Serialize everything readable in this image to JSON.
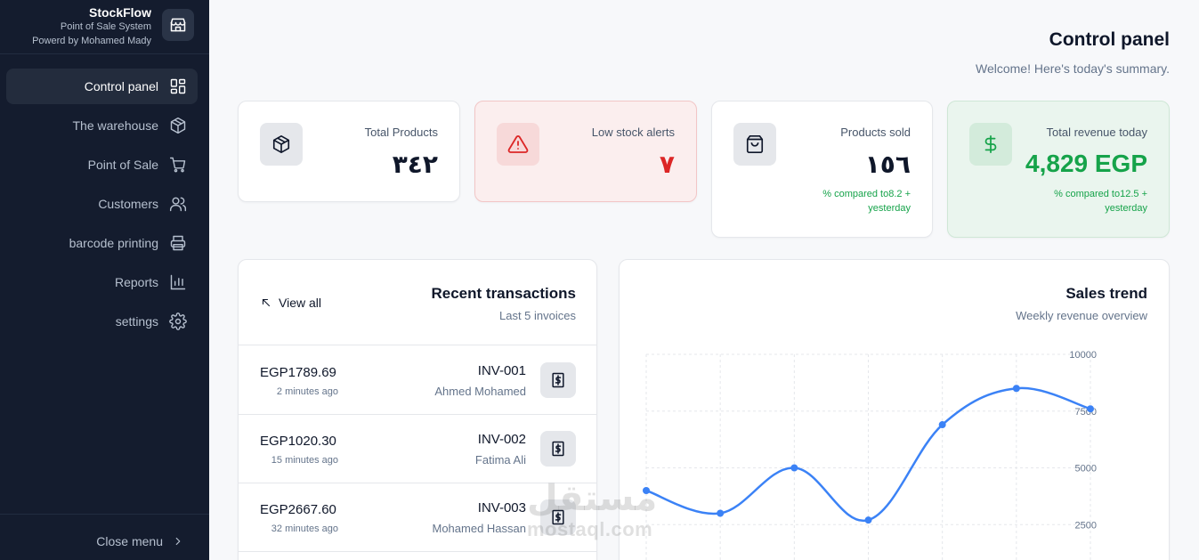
{
  "app": {
    "name": "StockFlow",
    "subtitle": "Point of Sale System",
    "powered_by": "Powerd by Mohamed Mady",
    "icon": "store-icon"
  },
  "sidebar": {
    "items": [
      {
        "label": "Control panel",
        "icon": "dashboard-icon",
        "active": true
      },
      {
        "label": "The warehouse",
        "icon": "box-icon"
      },
      {
        "label": "Point of Sale",
        "icon": "cart-icon"
      },
      {
        "label": "Customers",
        "icon": "users-icon"
      },
      {
        "label": "barcode printing",
        "icon": "printer-icon"
      },
      {
        "label": "Reports",
        "icon": "bar-chart-icon"
      },
      {
        "label": "settings",
        "icon": "gear-icon"
      }
    ],
    "close_label": "Close menu"
  },
  "header": {
    "title": "Control panel",
    "subtitle": "Welcome! Here's today's summary."
  },
  "stats": [
    {
      "label": "Total Products",
      "value": "٣٤٢",
      "icon": "box-icon"
    },
    {
      "label": "Low stock alerts",
      "value": "٧",
      "icon": "warning-icon"
    },
    {
      "label": "Products sold",
      "value": "١٥٦",
      "trend": "% compared to8.2 + yesterday",
      "icon": "shopping-bag-icon"
    },
    {
      "label": "Total revenue today",
      "value": "4,829 EGP",
      "trend": "% compared to12.5 + yesterday",
      "icon": "dollar-icon"
    }
  ],
  "transactions": {
    "title": "Recent transactions",
    "subtitle": "Last 5 invoices",
    "view_all": "View all",
    "rows": [
      {
        "invoice": "INV-001",
        "customer": "Ahmed Mohamed",
        "amount": "EGP1789.69",
        "time": "2 minutes ago"
      },
      {
        "invoice": "INV-002",
        "customer": "Fatima Ali",
        "amount": "EGP1020.30",
        "time": "15 minutes ago"
      },
      {
        "invoice": "INV-003",
        "customer": "Mohamed Hassan",
        "amount": "EGP2667.60",
        "time": "32 minutes ago"
      }
    ]
  },
  "sales": {
    "title": "Sales trend",
    "subtitle": "Weekly revenue overview"
  },
  "chart_data": {
    "type": "line",
    "y_ticks": [
      "10000",
      "7500",
      "5000",
      "2500"
    ],
    "ylim": [
      0,
      10000
    ],
    "grid": true,
    "color": "#3b82f6",
    "values": [
      4000,
      3000,
      5000,
      2700,
      6900,
      8500,
      7600
    ]
  },
  "watermark": {
    "ar": "مستقل",
    "en": "mostaql.com"
  }
}
